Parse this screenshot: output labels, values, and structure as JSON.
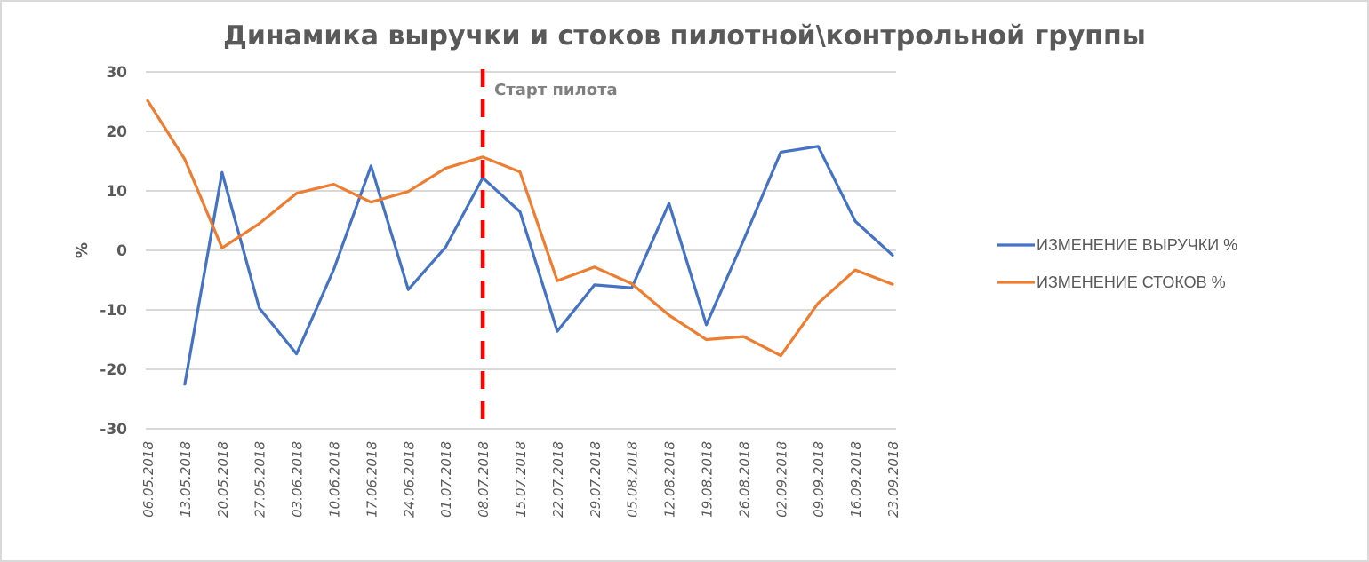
{
  "chart_data": {
    "type": "line",
    "title": "Динамика выручки и стоков пилотной\\контрольной группы",
    "xlabel": "",
    "ylabel": "%",
    "ylim": [
      -30,
      30
    ],
    "yticks": [
      30,
      20,
      10,
      0,
      -10,
      -20,
      -30
    ],
    "grid": true,
    "legend_position": "right",
    "categories": [
      "06.05.2018",
      "13.05.2018",
      "20.05.2018",
      "27.05.2018",
      "03.06.2018",
      "10.06.2018",
      "17.06.2018",
      "24.06.2018",
      "01.07.2018",
      "08.07.2018",
      "15.07.2018",
      "22.07.2018",
      "29.07.2018",
      "05.08.2018",
      "12.08.2018",
      "19.08.2018",
      "26.08.2018",
      "02.09.2018",
      "09.09.2018",
      "16.09.2018",
      "23.09.2018"
    ],
    "series": [
      {
        "name": "ИЗМЕНЕНИЕ ВЫРУЧКИ %",
        "color": "#4472c4",
        "values": [
          null,
          -22.5,
          13.1,
          -9.7,
          -17.4,
          -3.2,
          14.2,
          -6.6,
          0.5,
          12.2,
          6.5,
          -13.6,
          -5.8,
          -6.3,
          7.9,
          -12.5,
          1.7,
          16.5,
          17.5,
          4.9,
          -0.8
        ]
      },
      {
        "name": "ИЗМЕНЕНИЕ СТОКОВ %",
        "color": "#ed7d31",
        "values": [
          25.2,
          15.3,
          0.4,
          4.5,
          9.6,
          11.1,
          8.1,
          9.9,
          13.8,
          15.7,
          13.2,
          -5.1,
          -2.8,
          -5.6,
          -10.9,
          -15.0,
          -14.5,
          -17.7,
          -8.9,
          -3.3,
          -5.7
        ]
      }
    ],
    "annotations": [
      {
        "type": "vertical-dashed-line",
        "x": "08.07.2018",
        "color": "#ff0000",
        "label": "Старт пилота"
      }
    ]
  }
}
